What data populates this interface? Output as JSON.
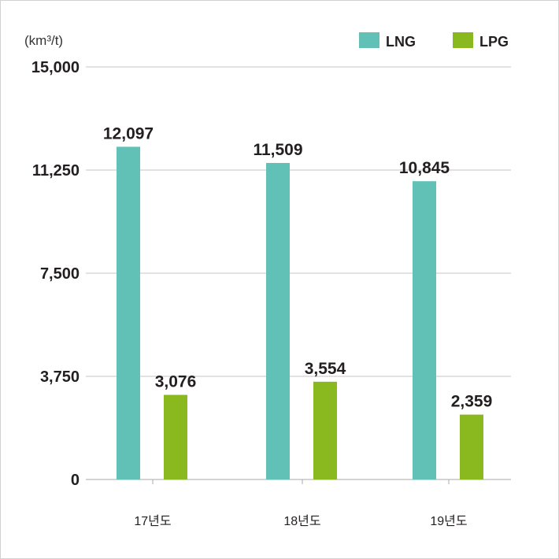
{
  "chart_data": {
    "type": "bar",
    "unit_label": "(km³/t)",
    "categories": [
      "17년도",
      "18년도",
      "19년도"
    ],
    "series": [
      {
        "name": "LNG",
        "color": "#62c1b7",
        "values": [
          12097,
          11509,
          10845
        ],
        "labels": [
          "12,097",
          "11,509",
          "10,845"
        ]
      },
      {
        "name": "LPG",
        "color": "#8ab81f",
        "values": [
          3076,
          3554,
          2359
        ],
        "labels": [
          "3,076",
          "3,554",
          "2,359"
        ]
      }
    ],
    "ylim": [
      0,
      15000
    ],
    "yticks": [
      0,
      3750,
      7500,
      11250,
      15000
    ],
    "ytick_labels": [
      "0",
      "3,750",
      "7,500",
      "11,250",
      "15,000"
    ],
    "gridlines": true,
    "legend_position": "top-right"
  }
}
